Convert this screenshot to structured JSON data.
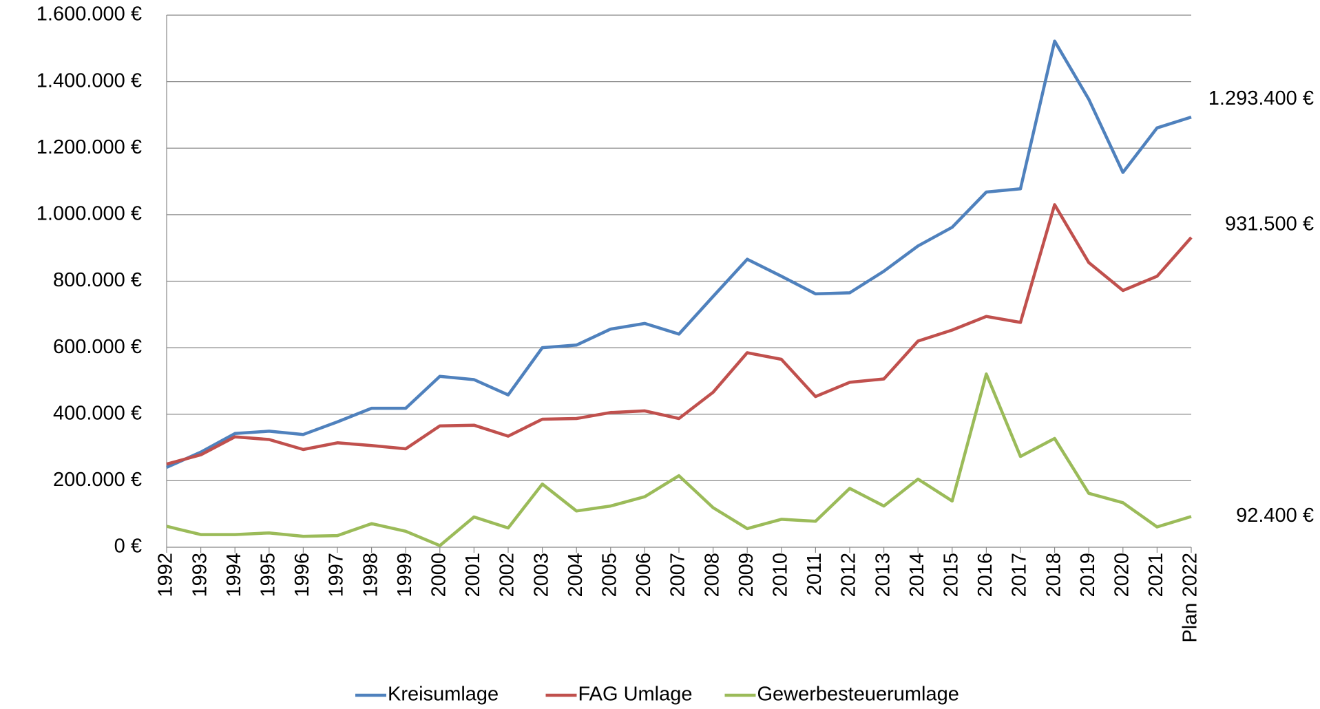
{
  "chart_data": {
    "type": "line",
    "categories": [
      "1992",
      "1993",
      "1994",
      "1995",
      "1996",
      "1997",
      "1998",
      "1999",
      "2000",
      "2001",
      "2002",
      "2003",
      "2004",
      "2005",
      "2006",
      "2007",
      "2008",
      "2009",
      "2010",
      "2011",
      "2012",
      "2013",
      "2014",
      "2015",
      "2016",
      "2017",
      "2018",
      "2019",
      "2020",
      "2021",
      "Plan 2022"
    ],
    "ylim": [
      0,
      1600000
    ],
    "yticks": [
      {
        "value": 0,
        "label": "0 €"
      },
      {
        "value": 200000,
        "label": "200.000 €"
      },
      {
        "value": 400000,
        "label": "400.000 €"
      },
      {
        "value": 600000,
        "label": "600.000 €"
      },
      {
        "value": 800000,
        "label": "800.000 €"
      },
      {
        "value": 1000000,
        "label": "1.000.000 €"
      },
      {
        "value": 1200000,
        "label": "1.200.000 €"
      },
      {
        "value": 1400000,
        "label": "1.400.000 €"
      },
      {
        "value": 1600000,
        "label": "1.600.000 €"
      }
    ],
    "grid": true,
    "legend": "bottom",
    "series": [
      {
        "name": "Kreisumlage",
        "color": "#4f81bd",
        "values": [
          240000,
          286000,
          342000,
          349000,
          339000,
          377000,
          418000,
          418000,
          514000,
          504000,
          458000,
          600000,
          608000,
          656000,
          673000,
          641000,
          754000,
          866000,
          815000,
          762000,
          765000,
          830000,
          906000,
          962000,
          1068000,
          1078000,
          1522000,
          1347000,
          1127000,
          1261000,
          1293400
        ],
        "value_labels": [
          null,
          null,
          null,
          null,
          null,
          null,
          null,
          null,
          null,
          null,
          null,
          null,
          null,
          null,
          null,
          null,
          null,
          null,
          null,
          null,
          null,
          null,
          null,
          null,
          null,
          null,
          null,
          null,
          null,
          null,
          "1.293.400 €"
        ]
      },
      {
        "name": "FAG Umlage",
        "color": "#c0504d",
        "values": [
          250000,
          278000,
          332000,
          324000,
          294000,
          314000,
          306000,
          296000,
          365000,
          367000,
          334000,
          385000,
          387000,
          405000,
          410000,
          387000,
          466000,
          585000,
          565000,
          453000,
          496000,
          506000,
          620000,
          653000,
          694000,
          676000,
          1030000,
          856000,
          772000,
          815000,
          931500
        ],
        "value_labels": [
          null,
          null,
          null,
          null,
          null,
          null,
          null,
          null,
          null,
          null,
          null,
          null,
          null,
          null,
          null,
          null,
          null,
          null,
          null,
          null,
          null,
          null,
          null,
          null,
          null,
          null,
          null,
          null,
          null,
          null,
          "931.500 €"
        ]
      },
      {
        "name": "Gewerbesteuerumlage",
        "color": "#9bbb59",
        "values": [
          63000,
          38000,
          38000,
          43000,
          33000,
          35000,
          71000,
          48000,
          5000,
          91000,
          58000,
          190000,
          109000,
          124000,
          152000,
          215000,
          119000,
          56000,
          84000,
          78000,
          177000,
          124000,
          205000,
          139000,
          521000,
          273000,
          327000,
          162000,
          134000,
          61000,
          92400
        ],
        "value_labels": [
          null,
          null,
          null,
          null,
          null,
          null,
          null,
          null,
          null,
          null,
          null,
          null,
          null,
          null,
          null,
          null,
          null,
          null,
          null,
          null,
          null,
          null,
          null,
          null,
          null,
          null,
          null,
          null,
          null,
          null,
          "92.400 €"
        ]
      }
    ]
  }
}
